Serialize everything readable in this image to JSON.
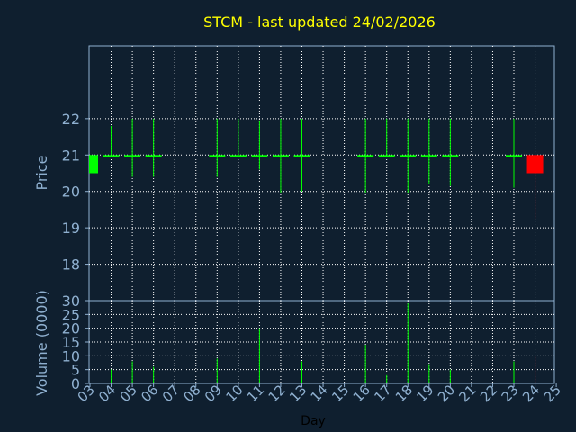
{
  "chart_data": [
    {
      "type": "candlestick",
      "title": "STCM - last updated 24/02/2026",
      "xlabel": "Day",
      "ylabel": "Price",
      "y_ticks": [
        18,
        19,
        20,
        21,
        22
      ],
      "ylim": [
        17,
        24
      ],
      "grid": true,
      "candles": [
        {
          "day": "03",
          "open": 20.5,
          "close": 21.0,
          "low": 20.5,
          "high": 21.0
        },
        {
          "day": "04",
          "open": 21.0,
          "close": 21.0,
          "low": 21.0,
          "high": 21.8
        },
        {
          "day": "05",
          "open": 21.0,
          "close": 21.0,
          "low": 20.4,
          "high": 22.0
        },
        {
          "day": "06",
          "open": 21.0,
          "close": 21.0,
          "low": 20.4,
          "high": 22.0
        },
        {
          "day": "09",
          "open": 21.0,
          "close": 21.0,
          "low": 20.4,
          "high": 22.0
        },
        {
          "day": "10",
          "open": 21.0,
          "close": 21.0,
          "low": 21.0,
          "high": 22.0
        },
        {
          "day": "11",
          "open": 21.0,
          "close": 21.0,
          "low": 20.6,
          "high": 21.95
        },
        {
          "day": "12",
          "open": 21.0,
          "close": 21.0,
          "low": 19.95,
          "high": 22.0
        },
        {
          "day": "13",
          "open": 21.0,
          "close": 21.0,
          "low": 20.0,
          "high": 22.0
        },
        {
          "day": "16",
          "open": 21.0,
          "close": 21.0,
          "low": 19.95,
          "high": 22.0
        },
        {
          "day": "17",
          "open": 21.0,
          "close": 21.0,
          "low": 21.0,
          "high": 22.0
        },
        {
          "day": "18",
          "open": 21.0,
          "close": 21.0,
          "low": 19.95,
          "high": 22.0
        },
        {
          "day": "19",
          "open": 21.0,
          "close": 21.0,
          "low": 20.2,
          "high": 22.0
        },
        {
          "day": "20",
          "open": 21.0,
          "close": 21.0,
          "low": 20.15,
          "high": 22.0
        },
        {
          "day": "23",
          "open": 21.0,
          "close": 21.0,
          "low": 20.1,
          "high": 22.0
        },
        {
          "day": "24",
          "open": 21.0,
          "close": 20.5,
          "low": 19.25,
          "high": 21.0
        }
      ]
    },
    {
      "type": "bar",
      "xlabel": "Day",
      "ylabel": "Volume (0000)",
      "y_ticks": [
        0,
        5,
        10,
        15,
        20,
        25,
        30
      ],
      "ylim": [
        0,
        30
      ],
      "grid": true,
      "categories": [
        "03",
        "04",
        "05",
        "06",
        "07",
        "08",
        "09",
        "10",
        "11",
        "12",
        "13",
        "14",
        "15",
        "16",
        "17",
        "18",
        "19",
        "20",
        "21",
        "22",
        "23",
        "24",
        "25"
      ],
      "values": [
        0,
        5,
        8,
        6,
        0,
        0,
        9,
        0,
        20,
        0,
        8,
        0,
        0,
        14,
        3,
        29,
        7,
        5,
        0,
        0,
        8,
        10,
        0
      ],
      "colors": [
        "#00ff00",
        "#00ff00",
        "#00ff00",
        "#00ff00",
        "#00ff00",
        "#00ff00",
        "#00ff00",
        "#00ff00",
        "#00ff00",
        "#00ff00",
        "#00ff00",
        "#00ff00",
        "#00ff00",
        "#00ff00",
        "#00ff00",
        "#00ff00",
        "#00ff00",
        "#00ff00",
        "#00ff00",
        "#00ff00",
        "#00ff00",
        "#ff0000",
        "#00ff00"
      ]
    }
  ],
  "colors": {
    "background": "#0f1f2f",
    "frame": "#8fb0d0",
    "grid": "#ffffff",
    "title": "#ffff00",
    "axis_text": "#8fb0d0",
    "up": "#00ff00",
    "down": "#ff0000"
  }
}
